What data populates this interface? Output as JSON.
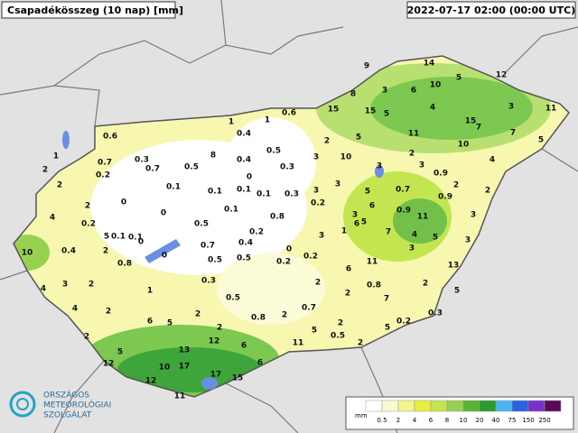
{
  "header": {
    "title": "Csapadékösszeg (10 nap) [mm]",
    "timestamp": "2022-07-17 02:00 (00:00 UTC)"
  },
  "logo": {
    "lines": [
      "ORSZÁGOS",
      "METEOROLÓGIAI",
      "SZOLGÁLAT"
    ]
  },
  "legend": {
    "unit": "mm",
    "ticks": [
      0.5,
      2,
      4,
      6,
      8,
      10,
      20,
      40,
      75,
      150,
      250
    ],
    "colors": [
      "#ffffff",
      "#fafad2",
      "#f5f58c",
      "#e6f03c",
      "#c3e650",
      "#96d250",
      "#5ab432",
      "#2d9a2d",
      "#4ab4f0",
      "#2864dc",
      "#7832c8",
      "#5a0a5a"
    ]
  },
  "station_values": [
    9,
    14,
    12,
    8,
    3,
    6,
    10,
    5,
    15,
    15,
    5,
    4,
    15,
    7,
    3,
    11,
    0.6,
    1,
    1,
    0.6,
    0.4,
    2,
    5,
    11,
    10,
    7,
    5,
    1,
    0.7,
    0.3,
    0.5,
    8,
    0.5,
    10,
    3,
    2,
    3,
    4,
    2,
    0.2,
    0.7,
    0.4,
    3,
    0.3,
    0.9,
    2,
    0,
    0.1,
    0.1,
    0.1,
    0,
    0.1,
    0.3,
    3,
    3,
    5,
    0.7,
    0.9,
    2,
    2,
    6,
    4,
    2,
    0.2,
    0,
    0.1,
    0.8,
    0.2,
    3,
    0.9,
    11,
    3,
    6,
    5,
    5,
    0.1,
    0.1,
    0.5,
    0.2,
    3,
    1,
    7,
    4,
    5,
    3,
    10,
    0.4,
    2,
    0,
    0,
    0.7,
    0.4,
    0,
    0.2,
    0.2,
    0.8,
    0.5,
    0.5,
    3,
    13,
    6,
    11,
    4,
    3,
    2,
    1,
    0.3,
    2,
    0.8,
    2,
    2,
    7,
    5,
    4,
    2,
    0.5,
    2,
    0.7,
    0.3,
    6,
    5,
    0.8,
    2,
    2,
    5,
    0.2,
    2,
    2,
    12,
    5,
    0.5,
    2,
    5,
    13,
    6,
    11,
    12,
    10,
    17,
    6,
    17,
    15,
    12,
    11
  ]
}
